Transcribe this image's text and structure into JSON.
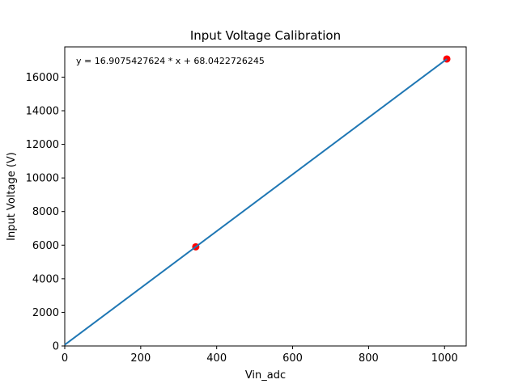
{
  "chart_data": {
    "type": "scatter",
    "title": "Input Voltage Calibration",
    "xlabel": "Vin_adc",
    "ylabel": "Input Voltage (V)",
    "xlim": [
      0,
      1057
    ],
    "ylim": [
      0,
      17800
    ],
    "xticks": [
      0,
      200,
      400,
      600,
      800,
      1000
    ],
    "yticks": [
      0,
      2000,
      4000,
      6000,
      8000,
      10000,
      12000,
      14000,
      16000
    ],
    "annotation": "y = 16.9075427624 * x + 68.0422726245",
    "grid": false,
    "series": [
      {
        "kind": "points",
        "color": "#ff0000",
        "x": [
          345,
          1006
        ],
        "y": [
          5900,
          17080
        ]
      },
      {
        "kind": "fit-line",
        "color": "#1f77b4",
        "slope": 16.9075427624,
        "intercept": 68.0422726245,
        "x": [
          0,
          1006
        ]
      }
    ]
  }
}
